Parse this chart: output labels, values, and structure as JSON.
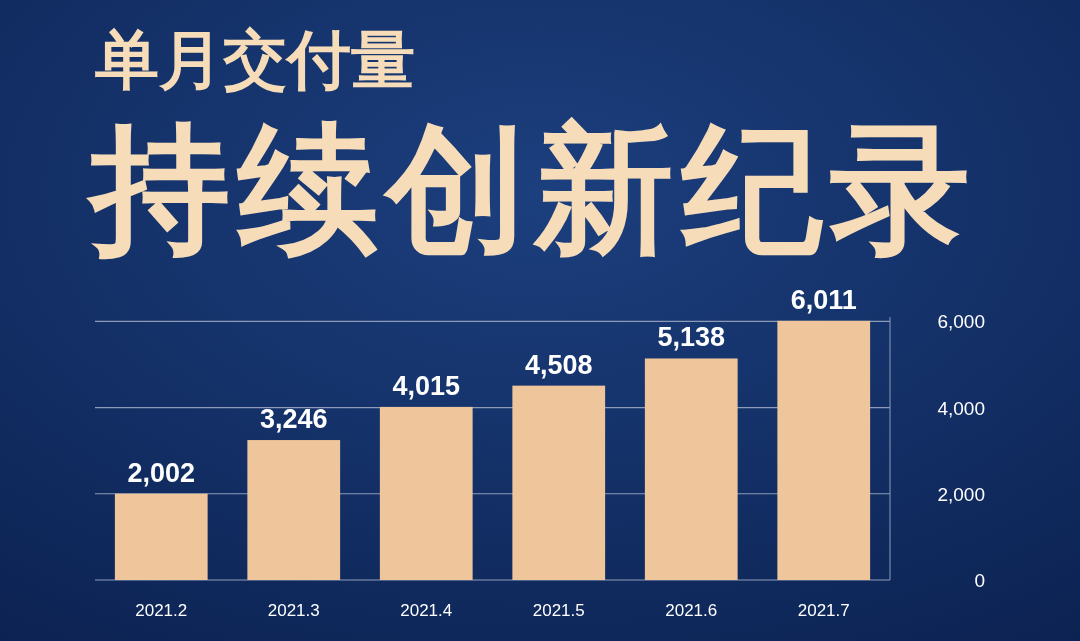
{
  "chart_data": {
    "type": "bar",
    "title": "单月交付量",
    "subtitle": "持续创新纪录",
    "categories": [
      "2021.2",
      "2021.3",
      "2021.4",
      "2021.5",
      "2021.6",
      "2021.7"
    ],
    "values": [
      2002,
      3246,
      4015,
      4508,
      5138,
      6011
    ],
    "value_labels": [
      "2,002",
      "3,246",
      "4,015",
      "4,508",
      "5,138",
      "6,011"
    ],
    "color": "#efc69b",
    "ylim": [
      0,
      6100
    ],
    "yticks": [
      0,
      {
        "value": 2000,
        "label": "2,000"
      },
      {
        "value": 4000,
        "label": "4,000"
      },
      {
        "value": 6000,
        "label": "6,000"
      }
    ],
    "grid": "y"
  }
}
